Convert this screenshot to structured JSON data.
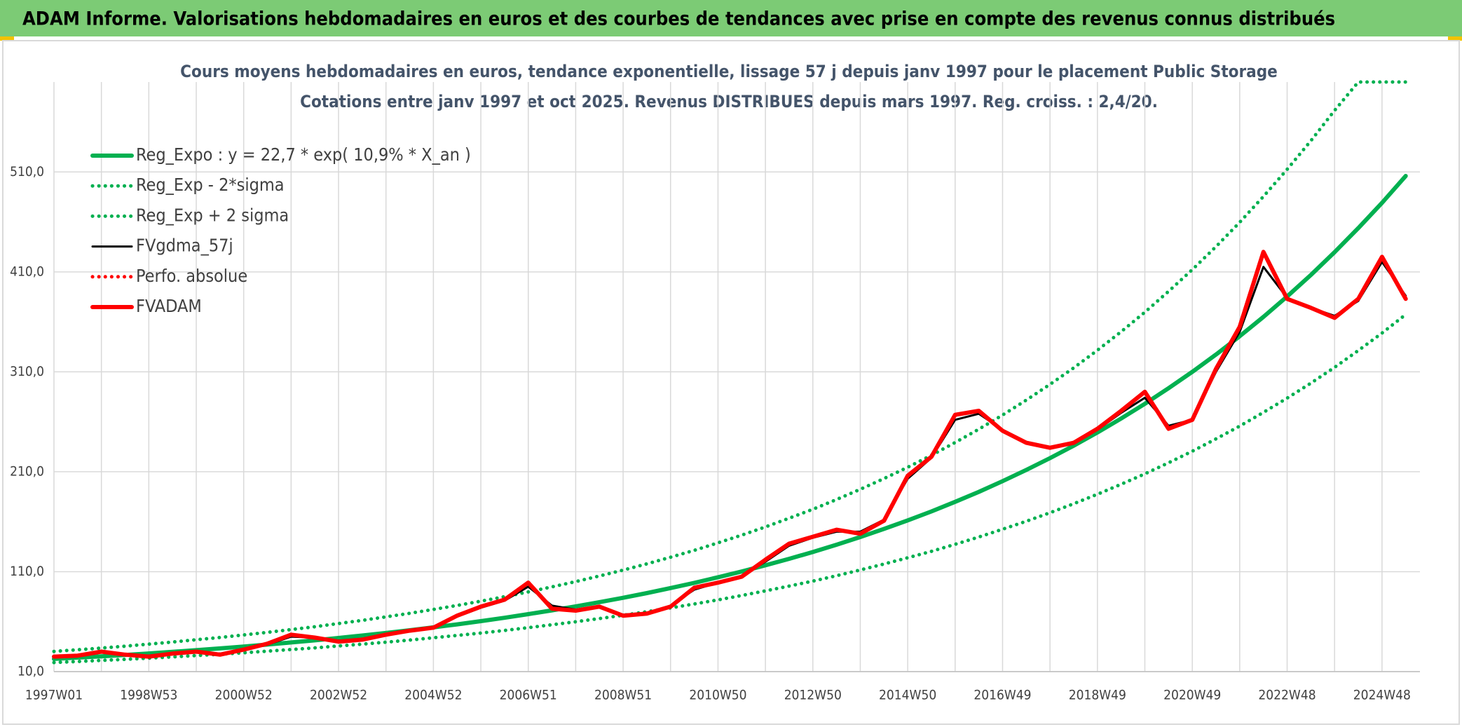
{
  "header": {
    "title": "ADAM Informe. Valorisations hebdomadaires en euros et des courbes de tendances avec prise en compte des revenus connus distribués"
  },
  "chart_data": {
    "type": "line",
    "title": "Cours moyens hebdomadaires en euros, tendance exponentielle, lissage 57 j depuis janv 1997 pour le placement Public Storage",
    "subtitle": "Cotations entre janv 1997 et oct 2025. Revenus DISTRIBUES depuis mars 1997. Reg. croiss. : 2,4/20.",
    "categories": [
      "1997W01",
      null,
      null,
      null,
      "1998W53",
      null,
      null,
      null,
      "2000W52",
      null,
      null,
      null,
      "2002W52",
      null,
      null,
      null,
      "2004W52",
      null,
      null,
      null,
      "2006W51",
      null,
      null,
      null,
      "2008W51",
      null,
      null,
      null,
      "2010W50",
      null,
      null,
      null,
      "2012W50",
      null,
      null,
      null,
      "2014W50",
      null,
      null,
      null,
      "2016W49",
      null,
      null,
      null,
      "2018W49",
      null,
      null,
      null,
      "2020W49",
      null,
      null,
      null,
      "2022W48",
      null,
      null,
      null,
      "2024W48",
      null
    ],
    "ylim": [
      10,
      600
    ],
    "yticks": [
      {
        "value": 10,
        "label": "10,0"
      },
      {
        "value": 110,
        "label": "110,0"
      },
      {
        "value": 210,
        "label": "210,0"
      },
      {
        "value": 310,
        "label": "310,0"
      },
      {
        "value": 410,
        "label": "410,0"
      },
      {
        "value": 510,
        "label": "510,0"
      }
    ],
    "grid": true,
    "series": [
      {
        "name": "Reg_Expo : y = 22,7 * exp( 10,9% *  X_an )",
        "color": "#00b050",
        "style": "thick",
        "values": [
          22.7,
          24.0,
          25.3,
          26.7,
          28.2,
          29.8,
          31.5,
          33.2,
          35.1,
          37.1,
          39.2,
          41.3,
          43.7,
          46.1,
          48.7,
          51.4,
          54.3,
          57.3,
          60.5,
          63.9,
          67.5,
          71.3,
          75.3,
          79.5,
          83.9,
          88.6,
          93.6,
          98.8,
          104.4,
          110.2,
          116.4,
          122.9,
          129.7,
          137.0,
          144.7,
          152.8,
          161.3,
          170.3,
          179.9,
          189.9,
          200.6,
          211.8,
          223.6,
          236.1,
          249.3,
          263.3,
          278.0,
          293.6,
          310.0,
          327.3,
          345.6,
          365.0,
          385.4,
          406.9,
          429.7,
          453.8,
          479.1,
          506.0
        ]
      },
      {
        "name": "Reg_Exp - 2*sigma",
        "color": "#00b050",
        "style": "dotted",
        "values": [
          19.1,
          20.1,
          21.2,
          22.3,
          23.5,
          24.7,
          26.1,
          27.4,
          28.9,
          30.5,
          32.1,
          33.8,
          35.7,
          37.5,
          39.5,
          41.6,
          43.9,
          46.2,
          48.6,
          51.2,
          54.0,
          56.9,
          59.9,
          63.1,
          66.4,
          70.0,
          73.8,
          77.7,
          81.8,
          86.2,
          90.8,
          95.6,
          100.6,
          106.0,
          111.7,
          117.7,
          123.9,
          130.4,
          137.4,
          144.7,
          152.5,
          160.5,
          169.0,
          178.0,
          187.5,
          197.5,
          207.9,
          219.0,
          230.6,
          242.9,
          255.7,
          269.4,
          283.7,
          298.7,
          314.5,
          331.3,
          348.8,
          367.4
        ]
      },
      {
        "name": "Reg_Exp + 2 sigma",
        "color": "#00b050",
        "style": "dotted",
        "values": [
          30.2,
          31.9,
          33.6,
          35.5,
          37.5,
          39.6,
          41.9,
          44.2,
          46.7,
          49.3,
          52.1,
          54.9,
          58.1,
          61.3,
          64.8,
          68.4,
          72.2,
          76.2,
          80.5,
          85.0,
          89.8,
          94.8,
          100.1,
          105.7,
          111.6,
          117.8,
          124.5,
          131.4,
          138.9,
          146.6,
          154.8,
          163.5,
          172.5,
          182.2,
          192.5,
          203.2,
          214.5,
          226.5,
          239.3,
          252.6,
          266.8,
          281.7,
          297.4,
          314.0,
          331.6,
          350.2,
          369.7,
          390.5,
          412.3,
          435.3,
          459.6,
          485.5,
          512.6,
          541.2,
          571.5,
          600,
          600,
          600
        ]
      },
      {
        "name": "FVgdma_57j",
        "color": "#000000",
        "style": "solid",
        "values": [
          25,
          26,
          29,
          27,
          26,
          28,
          30,
          28,
          32,
          37,
          45,
          44,
          41,
          42,
          46,
          51,
          55,
          65,
          74,
          81,
          95,
          76,
          72,
          74,
          67,
          69,
          76,
          92,
          99,
          106,
          120,
          136,
          144,
          150,
          150,
          162,
          203,
          224,
          262,
          268,
          252,
          240,
          235,
          239,
          252,
          269,
          284,
          256,
          262,
          310,
          350,
          415,
          384,
          374,
          366,
          381,
          420,
          386
        ]
      },
      {
        "name": "Perfo. absolue",
        "color": "#ff0000",
        "style": "dotted",
        "values": [
          25,
          26,
          30,
          27,
          25,
          28,
          30,
          27,
          32,
          38,
          47,
          44,
          40,
          42,
          47,
          51,
          54,
          66,
          75,
          82,
          99,
          73,
          71,
          75,
          66,
          68,
          75,
          94,
          99,
          105,
          122,
          138,
          145,
          152,
          148,
          161,
          206,
          225,
          267,
          271,
          251,
          239,
          234,
          239,
          253,
          271,
          290,
          253,
          262,
          313,
          355,
          430,
          383,
          374,
          364,
          383,
          425,
          383
        ]
      },
      {
        "name": "FVADAM",
        "color": "#ff0000",
        "style": "thick",
        "values": [
          25,
          26,
          30,
          27,
          25,
          28,
          30,
          27,
          32,
          38,
          47,
          44,
          40,
          42,
          47,
          51,
          54,
          66,
          75,
          82,
          99,
          73,
          71,
          75,
          66,
          68,
          75,
          94,
          99,
          105,
          122,
          138,
          145,
          152,
          148,
          161,
          206,
          225,
          267,
          271,
          251,
          239,
          234,
          239,
          253,
          271,
          290,
          253,
          262,
          313,
          355,
          430,
          383,
          374,
          364,
          383,
          425,
          383
        ]
      }
    ]
  }
}
